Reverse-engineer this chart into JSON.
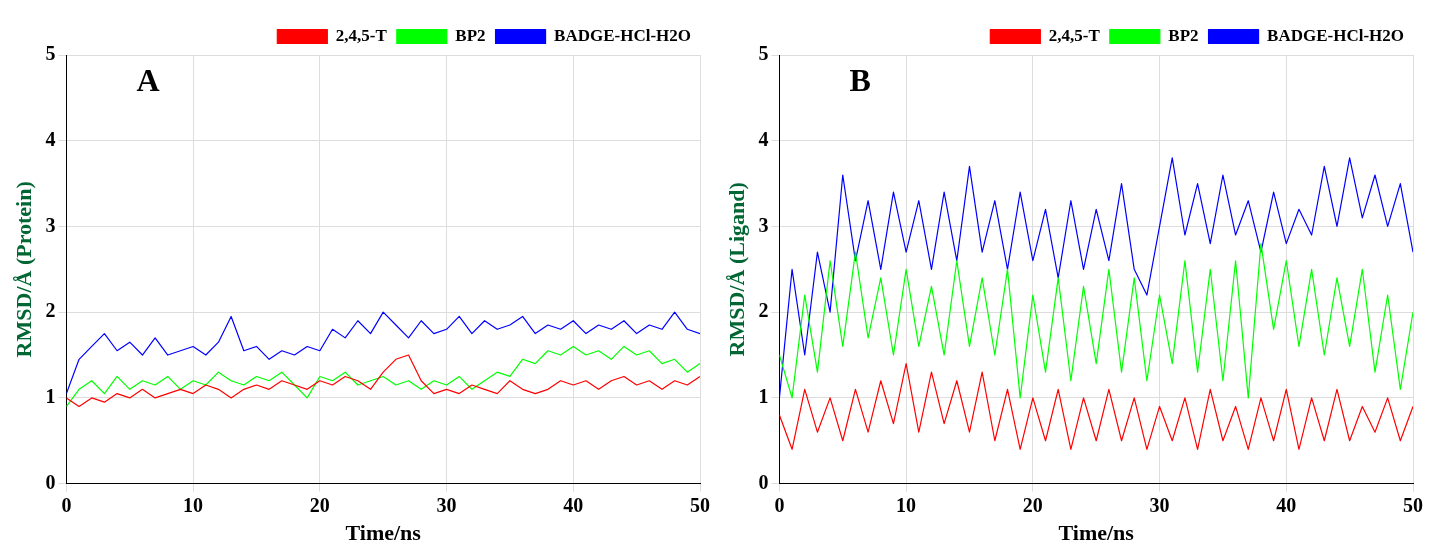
{
  "chart_data": [
    {
      "type": "line",
      "annotations": [
        "A"
      ],
      "xlabel": "Time/ns",
      "ylabel": "RMSD/Å (Protein)",
      "x": [
        0,
        1,
        2,
        3,
        4,
        5,
        6,
        7,
        8,
        9,
        10,
        11,
        12,
        13,
        14,
        15,
        16,
        17,
        18,
        19,
        20,
        21,
        22,
        23,
        24,
        25,
        26,
        27,
        28,
        29,
        30,
        31,
        32,
        33,
        34,
        35,
        36,
        37,
        38,
        39,
        40,
        41,
        42,
        43,
        44,
        45,
        46,
        47,
        48,
        49,
        50
      ],
      "xlim": [
        0,
        50
      ],
      "xticks": [
        0,
        10,
        20,
        30,
        40,
        50
      ],
      "ylim": [
        0,
        5
      ],
      "yticks": [
        0,
        1,
        2,
        3,
        4,
        5
      ],
      "grid": true,
      "legend": "top right",
      "marker": "none",
      "series": [
        {
          "name": "2,4,5-T",
          "color": "#ff0000",
          "values": [
            1.0,
            0.9,
            1.0,
            0.95,
            1.05,
            1.0,
            1.1,
            1.0,
            1.05,
            1.1,
            1.05,
            1.15,
            1.1,
            1.0,
            1.1,
            1.15,
            1.1,
            1.2,
            1.15,
            1.1,
            1.2,
            1.15,
            1.25,
            1.2,
            1.1,
            1.3,
            1.45,
            1.5,
            1.2,
            1.05,
            1.1,
            1.05,
            1.15,
            1.1,
            1.05,
            1.2,
            1.1,
            1.05,
            1.1,
            1.2,
            1.15,
            1.2,
            1.1,
            1.2,
            1.25,
            1.15,
            1.2,
            1.1,
            1.2,
            1.15,
            1.25
          ]
        },
        {
          "name": "BP2",
          "color": "#00ff00",
          "values": [
            0.9,
            1.1,
            1.2,
            1.05,
            1.25,
            1.1,
            1.2,
            1.15,
            1.25,
            1.1,
            1.2,
            1.15,
            1.3,
            1.2,
            1.15,
            1.25,
            1.2,
            1.3,
            1.15,
            1.0,
            1.25,
            1.2,
            1.3,
            1.15,
            1.2,
            1.25,
            1.15,
            1.2,
            1.1,
            1.2,
            1.15,
            1.25,
            1.1,
            1.2,
            1.3,
            1.25,
            1.45,
            1.4,
            1.55,
            1.5,
            1.6,
            1.5,
            1.55,
            1.45,
            1.6,
            1.5,
            1.55,
            1.4,
            1.45,
            1.3,
            1.4
          ]
        },
        {
          "name": "BADGE-HCl-H2O",
          "color": "#0000ff",
          "values": [
            1.05,
            1.45,
            1.6,
            1.75,
            1.55,
            1.65,
            1.5,
            1.7,
            1.5,
            1.55,
            1.6,
            1.5,
            1.65,
            1.95,
            1.55,
            1.6,
            1.45,
            1.55,
            1.5,
            1.6,
            1.55,
            1.8,
            1.7,
            1.9,
            1.75,
            2.0,
            1.85,
            1.7,
            1.9,
            1.75,
            1.8,
            1.95,
            1.75,
            1.9,
            1.8,
            1.85,
            1.95,
            1.75,
            1.85,
            1.8,
            1.9,
            1.75,
            1.85,
            1.8,
            1.9,
            1.75,
            1.85,
            1.8,
            2.0,
            1.8,
            1.75
          ]
        }
      ]
    },
    {
      "type": "line",
      "annotations": [
        "B"
      ],
      "xlabel": "Time/ns",
      "ylabel": "RMSD/Å (Ligand)",
      "x": [
        0,
        1,
        2,
        3,
        4,
        5,
        6,
        7,
        8,
        9,
        10,
        11,
        12,
        13,
        14,
        15,
        16,
        17,
        18,
        19,
        20,
        21,
        22,
        23,
        24,
        25,
        26,
        27,
        28,
        29,
        30,
        31,
        32,
        33,
        34,
        35,
        36,
        37,
        38,
        39,
        40,
        41,
        42,
        43,
        44,
        45,
        46,
        47,
        48,
        49,
        50
      ],
      "xlim": [
        0,
        50
      ],
      "xticks": [
        0,
        10,
        20,
        30,
        40,
        50
      ],
      "ylim": [
        0,
        5
      ],
      "yticks": [
        0,
        1,
        2,
        3,
        4,
        5
      ],
      "grid": true,
      "legend": "top right",
      "marker": "none",
      "series": [
        {
          "name": "2,4,5-T",
          "color": "#ff0000",
          "values": [
            0.8,
            0.4,
            1.1,
            0.6,
            1.0,
            0.5,
            1.1,
            0.6,
            1.2,
            0.7,
            1.4,
            0.6,
            1.3,
            0.7,
            1.2,
            0.6,
            1.3,
            0.5,
            1.1,
            0.4,
            1.0,
            0.5,
            1.1,
            0.4,
            1.0,
            0.5,
            1.1,
            0.5,
            1.0,
            0.4,
            0.9,
            0.5,
            1.0,
            0.4,
            1.1,
            0.5,
            0.9,
            0.4,
            1.0,
            0.5,
            1.1,
            0.4,
            1.0,
            0.5,
            1.1,
            0.5,
            0.9,
            0.6,
            1.0,
            0.5,
            0.9
          ]
        },
        {
          "name": "BP2",
          "color": "#00ff00",
          "values": [
            1.5,
            1.0,
            2.2,
            1.3,
            2.6,
            1.6,
            2.7,
            1.7,
            2.4,
            1.5,
            2.5,
            1.6,
            2.3,
            1.5,
            2.6,
            1.6,
            2.4,
            1.5,
            2.5,
            1.0,
            2.2,
            1.3,
            2.4,
            1.2,
            2.3,
            1.4,
            2.5,
            1.3,
            2.4,
            1.2,
            2.2,
            1.4,
            2.6,
            1.3,
            2.5,
            1.2,
            2.6,
            1.0,
            2.8,
            1.8,
            2.6,
            1.6,
            2.5,
            1.5,
            2.4,
            1.6,
            2.5,
            1.3,
            2.2,
            1.1,
            2.0
          ]
        },
        {
          "name": "BADGE-HCl-H2O",
          "color": "#0000ff",
          "values": [
            1.0,
            2.5,
            1.5,
            2.7,
            2.0,
            3.6,
            2.6,
            3.3,
            2.5,
            3.4,
            2.7,
            3.3,
            2.5,
            3.4,
            2.6,
            3.7,
            2.7,
            3.3,
            2.5,
            3.4,
            2.6,
            3.2,
            2.4,
            3.3,
            2.5,
            3.2,
            2.6,
            3.5,
            2.5,
            2.2,
            3.0,
            3.8,
            2.9,
            3.5,
            2.8,
            3.6,
            2.9,
            3.3,
            2.7,
            3.4,
            2.8,
            3.2,
            2.9,
            3.7,
            3.0,
            3.8,
            3.1,
            3.6,
            3.0,
            3.5,
            2.7
          ]
        }
      ]
    }
  ]
}
